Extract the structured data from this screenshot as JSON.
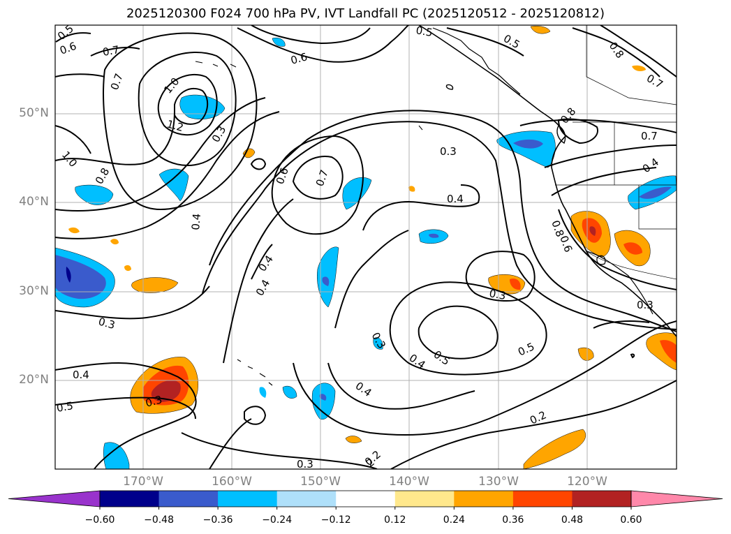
{
  "title": "2025120300 F024 700 hPa PV, IVT Landfall PC (2025120512 - 2025120812)",
  "axes": {
    "latitude_labels": [
      "50°N",
      "40°N",
      "30°N",
      "20°N"
    ],
    "longitude_labels": [
      "170°W",
      "160°W",
      "150°W",
      "140°W",
      "130°W",
      "120°W"
    ],
    "label_color": "#808080"
  },
  "contour_labels": [
    "0.5",
    "0.6",
    "0.7",
    "0.7",
    "1.0",
    "1.2",
    "0.5",
    "0.6",
    "0.5",
    "0.8",
    "0.7",
    "0.8",
    "0.7",
    "0.4",
    "0.3",
    "0.6",
    "0.7",
    "0.4",
    "0.4",
    "0.3",
    "0.8",
    "1.0",
    "0.8",
    "0.4",
    "0.6",
    "0.4",
    "0.3",
    "0.3",
    "0.3",
    "0.3",
    "0.4",
    "0.5",
    "0.5",
    "0.3",
    "0.4",
    "0.3",
    "0.2",
    "0.2",
    "2",
    "0.4",
    "0.5"
  ],
  "colorbar": {
    "ticks": [
      "−0.60",
      "−0.48",
      "−0.36",
      "−0.24",
      "−0.12",
      "0.12",
      "0.24",
      "0.36",
      "0.48",
      "0.60"
    ],
    "colors": [
      "#9933cc",
      "#00008b",
      "#3a5bcc",
      "#00bfff",
      "#afe0fa",
      "#ffffff",
      "#ffe88c",
      "#ffa500",
      "#ff4500",
      "#b22222",
      "#ff88aa"
    ]
  }
}
